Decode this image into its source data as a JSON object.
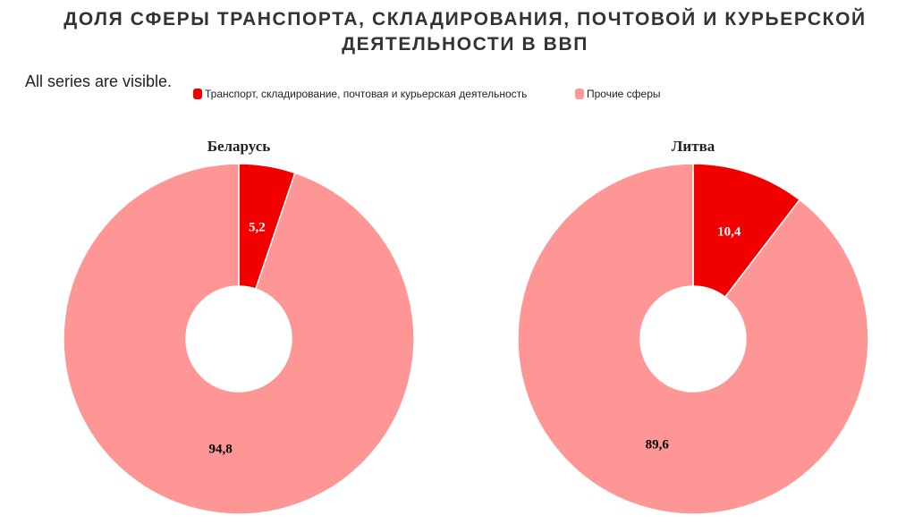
{
  "title": "ДОЛЯ СФЕРЫ ТРАНСПОРТА, СКЛАДИРОВАНИЯ, ПОЧТОВОЙ И КУРЬЕРСКОЙ ДЕЯТЕЛЬНОСТИ В ВВП",
  "status": "All series are visible.",
  "legend": [
    {
      "name": "Транспорт, складирование, почтовая и курьерская деятельность",
      "color": "#f20000",
      "label_color": "#ffffff"
    },
    {
      "name": "Прочие сферы",
      "color": "#fe9696",
      "label_color": "#000000"
    }
  ],
  "chart_data": [
    {
      "type": "donut",
      "title": "Беларусь",
      "values": [
        5.2,
        94.8
      ],
      "value_labels": [
        "5,2",
        "94,8"
      ]
    },
    {
      "type": "donut",
      "title": "Литва",
      "values": [
        10.4,
        89.6
      ],
      "value_labels": [
        "10,4",
        "89,6"
      ]
    }
  ]
}
